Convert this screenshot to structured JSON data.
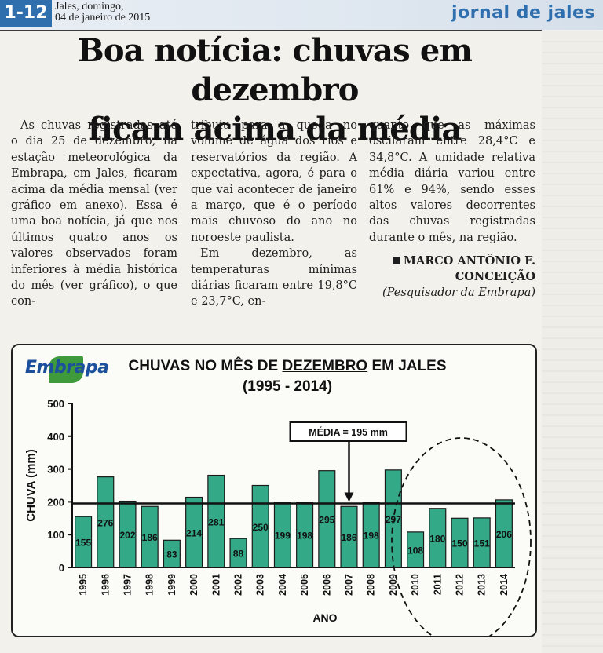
{
  "header": {
    "page_number": "1-12",
    "date_line_1": "Jales, domingo,",
    "date_line_2": "04 de janeiro de 2015",
    "masthead": "jornal de jales"
  },
  "article": {
    "headline_line_1": "Boa notícia: chuvas em dezembro",
    "headline_line_2": "ficam acima da média",
    "col1_p1": "As chuvas registradas até o dia 25 de dezembro, na estação meteorológica da Embrapa, em Jales, ficaram acima da média mensal (ver gráfico em anexo). Essa é uma boa notícia, já que nos últimos quatro anos os valores observados foram inferiores à média histórica do mês (ver gráfico), o que con-",
    "col2_p1": "tribuiu para a queda no volume de água dos rios e reservatórios da região. A expectativa, agora, é para o que vai acontecer de janeiro a março, que é o período mais chuvoso do ano no noroeste paulista.",
    "col2_p2": "Em dezembro, as temperaturas mínimas diárias ficaram entre 19,8°C e 23,7°C, en-",
    "col3_p1": "quanto que as máximas oscilaram entre 28,4°C e 34,8°C. A umidade relativa média diária variou entre 61% e 94%, sendo esses altos valores decorrentes das chuvas registradas durante o mês, na região.",
    "author_line_1": "MARCO ANTÔNIO F.",
    "author_line_2": "CONCEIÇÃO",
    "author_credit": "(Pesquisador da Embrapa)"
  },
  "chart_logo": "Embrapa",
  "chart_data": {
    "type": "bar",
    "title_prefix": "CHUVAS NO MÊS DE ",
    "title_underlined": "DEZEMBRO",
    "title_suffix": " EM JALES",
    "subtitle": "(1995 - 2014)",
    "xlabel": "ANO",
    "ylabel": "CHUVA (mm)",
    "ylim": [
      0,
      500
    ],
    "yticks": [
      0,
      100,
      200,
      300,
      400,
      500
    ],
    "categories": [
      "1995",
      "1996",
      "1997",
      "1998",
      "1999",
      "2000",
      "2001",
      "2002",
      "2003",
      "2004",
      "2005",
      "2006",
      "2007",
      "2008",
      "2009",
      "2010",
      "2011",
      "2012",
      "2013",
      "2014"
    ],
    "values": [
      155,
      276,
      202,
      186,
      83,
      214,
      281,
      88,
      250,
      199,
      198,
      295,
      186,
      198,
      297,
      108,
      180,
      150,
      151,
      206
    ],
    "mean_value": 195,
    "mean_label": "MÉDIA = 195 mm",
    "bar_color": "#33a987",
    "highlight_years": [
      "2010",
      "2011",
      "2012",
      "2013",
      "2014"
    ]
  }
}
